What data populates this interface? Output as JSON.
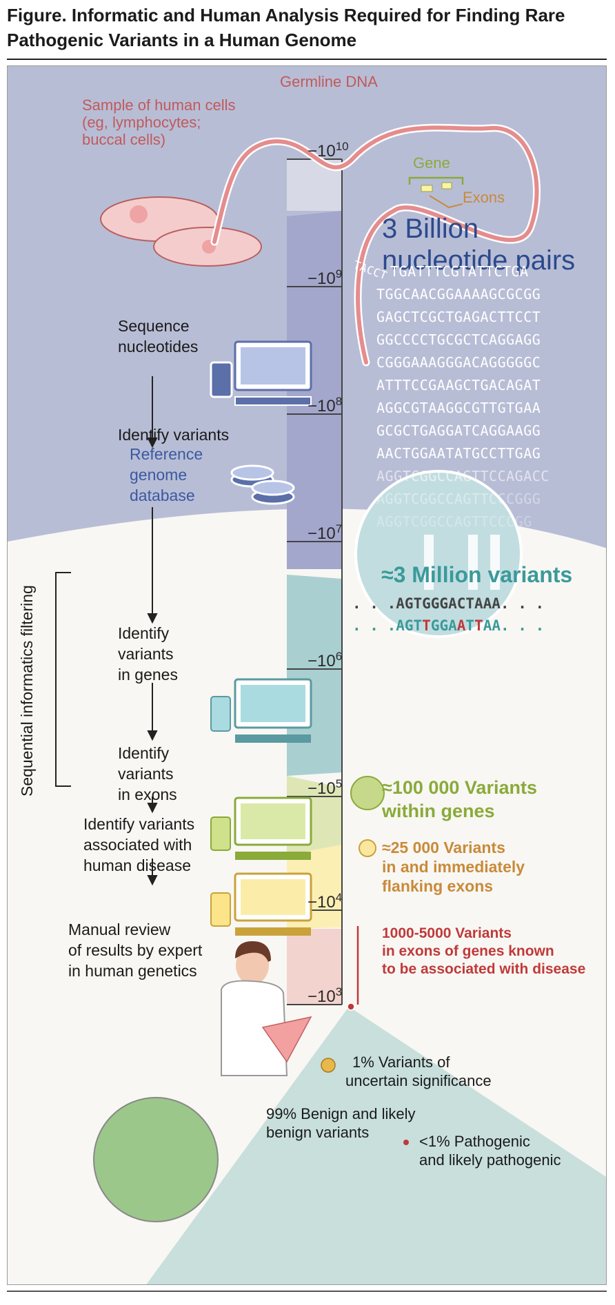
{
  "figure": {
    "title_line1": "Figure. Informatic and Human Analysis Required for Finding Rare",
    "title_line2": "Pathogenic Variants in a Human Genome"
  },
  "labels": {
    "germline_dna": "Germline DNA",
    "sample_line1": "Sample of human cells",
    "sample_line2": "(eg, lymphocytes;",
    "sample_line3": "buccal cells)",
    "gene": "Gene",
    "exons": "Exons",
    "billion_line1": "3 Billion",
    "billion_line2": "nucleotide pairs",
    "dna_start": "TACCT"
  },
  "dna_rows": [
    "TGATTTCGTATTCTGA",
    "TGGCAACGGAAAAGCGCGG",
    "GAGCTCGCTGAGACTTCCT",
    "GGCCCCTGCGCTCAGGAGG",
    "CGGGAAAGGGACAGGGGGC",
    "ATTTCCGAAGCTGACAGAT",
    "AGGCGTAAGGCGTTGTGAA",
    "GCGCTGAGGATCAGGAAGG",
    "AACTGGAATATGCCTTGAG",
    "AGGTCGGCCAGTTCCAGACC",
    "AGGTCGGCCAGTTCCCGGG",
    "AGGTCGGCCAGTTCCCGG"
  ],
  "steps": {
    "sequence_line1": "Sequence",
    "sequence_line2": "nucleotides",
    "identify_variants": "Identify variants",
    "reference_line1": "Reference",
    "reference_line2": "genome",
    "reference_line3": "database",
    "in_genes_line1": "Identify",
    "in_genes_line2": "variants",
    "in_genes_line3": "in genes",
    "in_exons_line1": "Identify",
    "in_exons_line2": "variants",
    "in_exons_line3": "in exons",
    "disease_line1": "Identify variants",
    "disease_line2": "associated with",
    "disease_line3": "human disease",
    "manual_line1": "Manual review",
    "manual_line2": "of results by expert",
    "manual_line3": "in human genetics",
    "bracket_label": "Sequential informatics filtering"
  },
  "scale": {
    "base": "10",
    "exponents": [
      "10",
      "9",
      "8",
      "7",
      "6",
      "5",
      "4",
      "3"
    ]
  },
  "variants": {
    "million": "≈3 Million variants",
    "ref_seq": ". . .AGTGGGACTAAA. . .",
    "alt_prefix": ". . .AGT",
    "alt_m1": "T",
    "alt_mid1": "GGA",
    "alt_m2": "A",
    "alt_mid2": "T",
    "alt_m3": "T",
    "alt_suffix": "AA. . .",
    "genes_line1": "≈100 000 Variants",
    "genes_line2": "within genes",
    "exons_line1": "≈25 000 Variants",
    "exons_line2": "in and immediately",
    "exons_line3": "flanking exons",
    "disease_line1": "1000-5000 Variants",
    "disease_line2": "in exons of genes known",
    "disease_line3": "to be associated with disease"
  },
  "breakdown": {
    "vus_line1": "1% Variants of",
    "vus_line2": "uncertain significance",
    "benign_line1": "99% Benign and likely",
    "benign_line2": "benign variants",
    "pathogenic_line1": "<1% Pathogenic",
    "pathogenic_line2": "and likely pathogenic"
  },
  "colors": {
    "blue_band": "#b8bdd6",
    "scale_upper": "#a7abcf",
    "teal": "#3a9a9a",
    "green": "#8aaa3a",
    "orange": "#c98a3a",
    "red": "#c0393a",
    "title_blue": "#2b4a8c"
  }
}
